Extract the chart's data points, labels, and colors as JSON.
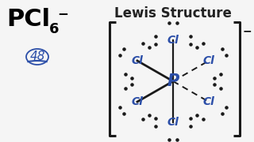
{
  "bg_color": "#f5f5f5",
  "title_text": "Lewis Structure",
  "formula_main": "PCl",
  "formula_sub": "6",
  "formula_sup": "−",
  "electron_count": "48",
  "bracket_color": "#1a1a1a",
  "bond_color": "#1a1a1a",
  "cl_color": "#2b4ea8",
  "p_color": "#2b4ea8",
  "dot_color": "#1a1a1a",
  "figw": 3.2,
  "figh": 1.8,
  "dpi": 100
}
